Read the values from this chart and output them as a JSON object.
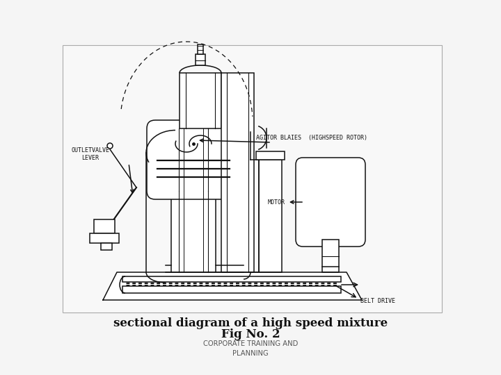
{
  "title_line1": "sectional diagram of a high speed mixture",
  "title_line2": "Fig No. 2",
  "subtitle": "CORPORATE TRAINING AND\nPLANNING",
  "bg_color": "#f5f5f5",
  "diagram_bg": "#f8f8f8",
  "line_color": "#111111",
  "lw": 1.1,
  "label_agitator": "AGITOR BLAIES  (HIGHSPEED ROTOR)",
  "label_outlet": "OUTLETVALVE\nLEVER",
  "label_motor": "MOTOR",
  "label_belt": "BELT DRIVE"
}
